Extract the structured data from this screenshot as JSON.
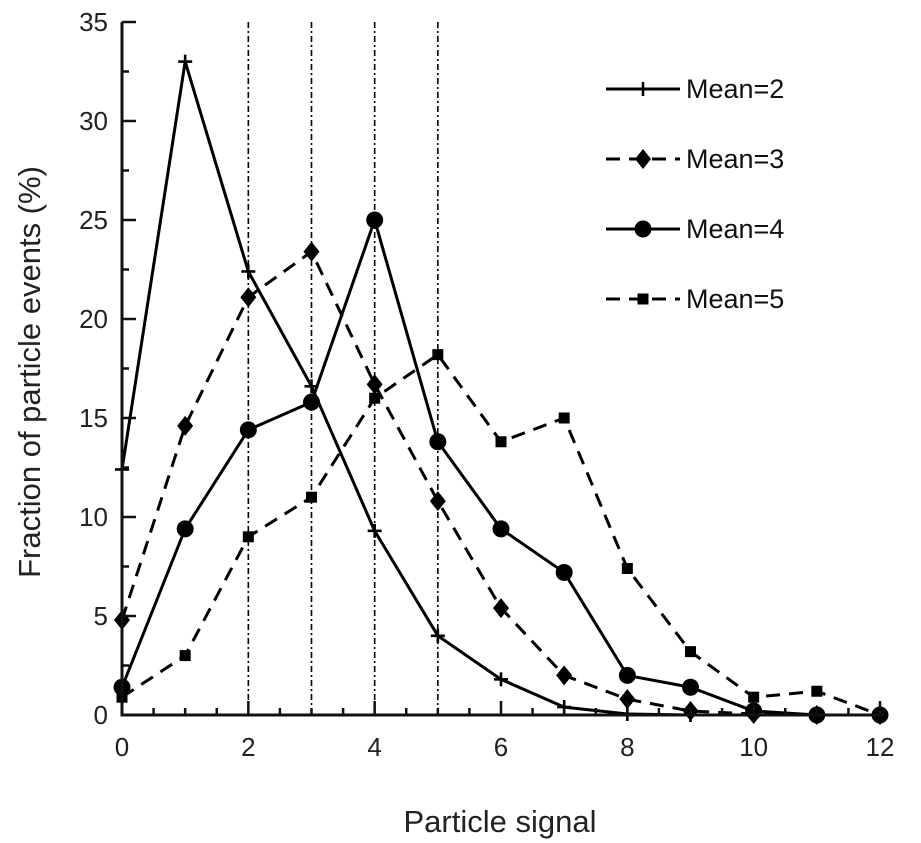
{
  "chart_data": {
    "type": "line",
    "xlabel": "Particle signal",
    "ylabel": "Fraction of particle events (%)",
    "xlim": [
      0,
      12
    ],
    "ylim": [
      0,
      35
    ],
    "xticks": [
      0,
      2,
      4,
      6,
      8,
      10,
      12
    ],
    "yticks": [
      0,
      5,
      10,
      15,
      20,
      25,
      30,
      35
    ],
    "grid": false,
    "legend_position": "top-right",
    "reference_lines_x": [
      2,
      3,
      4,
      5
    ],
    "series": [
      {
        "name": "Mean=2",
        "marker": "plus",
        "line_style": "solid",
        "color": "#000000",
        "x": [
          0,
          1,
          2,
          3,
          4,
          5,
          6,
          7,
          8,
          9,
          10,
          11,
          12
        ],
        "y": [
          12.4,
          33.0,
          22.4,
          16.6,
          9.3,
          4.0,
          1.8,
          0.4,
          0.05,
          0.0,
          0.0,
          0.0,
          0.0
        ]
      },
      {
        "name": "Mean=3",
        "marker": "diamond",
        "line_style": "dashed",
        "color": "#000000",
        "x": [
          0,
          1,
          2,
          3,
          4,
          5,
          6,
          7,
          8,
          9,
          10,
          11,
          12
        ],
        "y": [
          4.8,
          14.6,
          21.1,
          23.4,
          16.7,
          10.8,
          5.4,
          2.0,
          0.8,
          0.2,
          0.05,
          0.0,
          0.0
        ]
      },
      {
        "name": "Mean=4",
        "marker": "circle",
        "line_style": "solid",
        "color": "#000000",
        "x": [
          0,
          1,
          2,
          3,
          4,
          5,
          6,
          7,
          8,
          9,
          10,
          11,
          12
        ],
        "y": [
          1.4,
          9.4,
          14.4,
          15.8,
          25.0,
          13.8,
          9.4,
          7.2,
          2.0,
          1.4,
          0.2,
          0.0,
          0.0
        ]
      },
      {
        "name": "Mean=5",
        "marker": "square",
        "line_style": "dashed",
        "color": "#000000",
        "x": [
          0,
          1,
          2,
          3,
          4,
          5,
          6,
          7,
          8,
          9,
          10,
          11,
          12
        ],
        "y": [
          0.9,
          3.0,
          9.0,
          11.0,
          16.0,
          18.2,
          13.8,
          15.0,
          7.4,
          3.2,
          0.9,
          1.2,
          0.0
        ]
      }
    ]
  }
}
